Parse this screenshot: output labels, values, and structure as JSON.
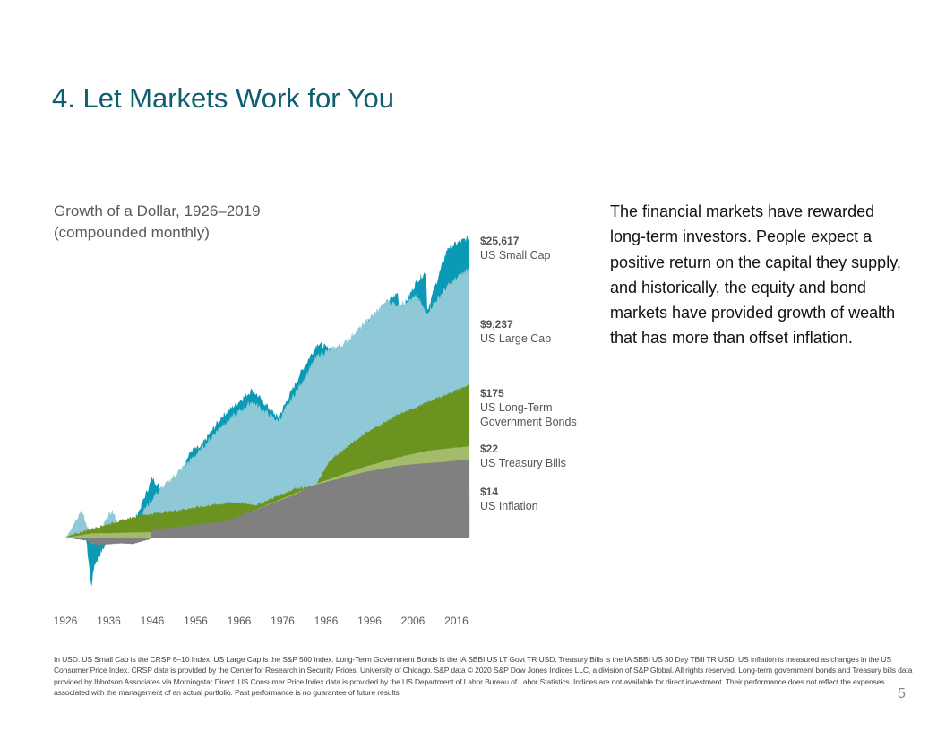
{
  "title": "4. Let Markets Work for You",
  "subtitle_line1": "Growth of a Dollar, 1926–2019",
  "subtitle_line2": "(compounded  monthly)",
  "body_text": "The financial markets have rewarded long-term investors. People expect a positive return on the capital they supply, and historically, the equity and bond markets have provided growth of wealth that has more than offset inflation.",
  "footnote": "In USD. US Small Cap is the CRSP 6–10 Index. US Large Cap is the S&P 500 Index. Long-Term Government Bonds is the IA SBBI US LT Govt TR USD. Treasury Bills is the IA SBBI US 30 Day TBill TR USD. US Inflation is measured as changes in the US Consumer Price Index. CRSP data is provided by the Center for Research in Security Prices, University of Chicago. S&P data © 2020 S&P Dow Jones Indices LLC, a division of S&P Global. All rights reserved. Long-term government bonds and Treasury bills data provided by Ibbotson Associates via Morningstar Direct. US Consumer Price Index data is provided by the US Department of Labor Bureau of Labor Statistics. Indices are not available for direct investment. Their performance does not reflect the expenses associated with the management of an actual portfolio. Past performance is no guarantee of future results.",
  "page_number": "5",
  "chart_data": {
    "type": "area",
    "title": "Growth of a Dollar, 1926–2019 (compounded monthly)",
    "yscale": "log",
    "ylim": [
      0.1,
      40000
    ],
    "xlim": [
      1926,
      2019
    ],
    "grid": false,
    "x_ticks": [
      "1926",
      "1936",
      "1946",
      "1956",
      "1966",
      "1976",
      "1986",
      "1996",
      "2006",
      "2016"
    ],
    "series": [
      {
        "name": "US Small Cap",
        "end_label": "$25,617",
        "color": "#0A9AB5",
        "points": [
          [
            1926,
            1
          ],
          [
            1928,
            1.1
          ],
          [
            1929.5,
            1.6
          ],
          [
            1930.8,
            0.9
          ],
          [
            1932,
            0.19
          ],
          [
            1932.7,
            0.4
          ],
          [
            1935,
            0.74
          ],
          [
            1937,
            1.3
          ],
          [
            1940,
            1.1
          ],
          [
            1943,
            2.5
          ],
          [
            1946,
            7.5
          ],
          [
            1949.4,
            4.1
          ],
          [
            1955,
            19
          ],
          [
            1957,
            21
          ],
          [
            1962,
            60
          ],
          [
            1969,
            148
          ],
          [
            1975,
            57
          ],
          [
            1980,
            250
          ],
          [
            1984,
            710
          ],
          [
            1987,
            580
          ],
          [
            1990,
            600
          ],
          [
            1995.4,
            1430
          ],
          [
            1999,
            2500
          ],
          [
            2002.5,
            3900
          ],
          [
            2003,
            1950
          ],
          [
            2007,
            6000
          ],
          [
            2009,
            8000
          ],
          [
            2009.3,
            2150
          ],
          [
            2014,
            18000
          ],
          [
            2019,
            25617
          ]
        ]
      },
      {
        "name": "US Large Cap",
        "end_label": "$9,237",
        "color": "#8FC8D6",
        "points": [
          [
            1926,
            1
          ],
          [
            1929.6,
            2.5
          ],
          [
            1931.5,
            1.2
          ],
          [
            1932.3,
            0.8
          ],
          [
            1933.5,
            1.1
          ],
          [
            1936.7,
            2.5
          ],
          [
            1939,
            1.2
          ],
          [
            1942,
            1.5
          ],
          [
            1944,
            2.5
          ],
          [
            1947,
            4.5
          ],
          [
            1957,
            19
          ],
          [
            1962,
            45
          ],
          [
            1969,
            100
          ],
          [
            1975,
            51
          ],
          [
            1984,
            470
          ],
          [
            1990,
            700
          ],
          [
            1995,
            1430
          ],
          [
            2000,
            3000
          ],
          [
            2002.5,
            2600
          ],
          [
            2007,
            3500
          ],
          [
            2009,
            1950
          ],
          [
            2014,
            5000
          ],
          [
            2019,
            9237
          ]
        ]
      },
      {
        "name": "US Long-Term Government Bonds",
        "end_label": "$175",
        "color": "#6A9320",
        "points": [
          [
            1926,
            1
          ],
          [
            1932,
            1.35
          ],
          [
            1943,
            2.1
          ],
          [
            1955,
            2.7
          ],
          [
            1964.5,
            3.3
          ],
          [
            1970,
            3.0
          ],
          [
            1979,
            5.3
          ],
          [
            1983.5,
            5.6
          ],
          [
            1987,
            13.8
          ],
          [
            1995,
            34
          ],
          [
            2002.5,
            63
          ],
          [
            2010.5,
            104
          ],
          [
            2019,
            175
          ]
        ]
      },
      {
        "name": "US Treasury Bills",
        "end_label": "$22",
        "color": "#A3BB6A",
        "points": [
          [
            1926,
            1
          ],
          [
            1932,
            1.15
          ],
          [
            1946,
            1.2
          ],
          [
            1963,
            1.7
          ],
          [
            1979,
            4.5
          ],
          [
            1983.5,
            6.1
          ],
          [
            1995,
            11
          ],
          [
            2002.5,
            15
          ],
          [
            2009,
            18.7
          ],
          [
            2019,
            22
          ]
        ]
      },
      {
        "name": "US Inflation",
        "end_label": "$14",
        "color": "#808080",
        "points": [
          [
            1926,
            1
          ],
          [
            1931,
            0.9
          ],
          [
            1933,
            0.78
          ],
          [
            1939,
            0.82
          ],
          [
            1941.5,
            0.8
          ],
          [
            1945.5,
            0.95
          ],
          [
            1946,
            1.29
          ],
          [
            1963,
            1.74
          ],
          [
            1979,
            4.3
          ],
          [
            1982,
            5.6
          ],
          [
            1995,
            9.2
          ],
          [
            2002.5,
            11.3
          ],
          [
            2019,
            14
          ]
        ]
      }
    ],
    "labels": [
      {
        "value": "$25,617",
        "name_lines": [
          "US Small Cap"
        ]
      },
      {
        "value": "$9,237",
        "name_lines": [
          "US Large  Cap"
        ]
      },
      {
        "value": "$175",
        "name_lines": [
          "US Long-Term",
          "Government  Bonds"
        ]
      },
      {
        "value": "$22",
        "name_lines": [
          "US Treasury  Bills"
        ]
      },
      {
        "value": "$14",
        "name_lines": [
          "US Inflation"
        ]
      }
    ]
  }
}
